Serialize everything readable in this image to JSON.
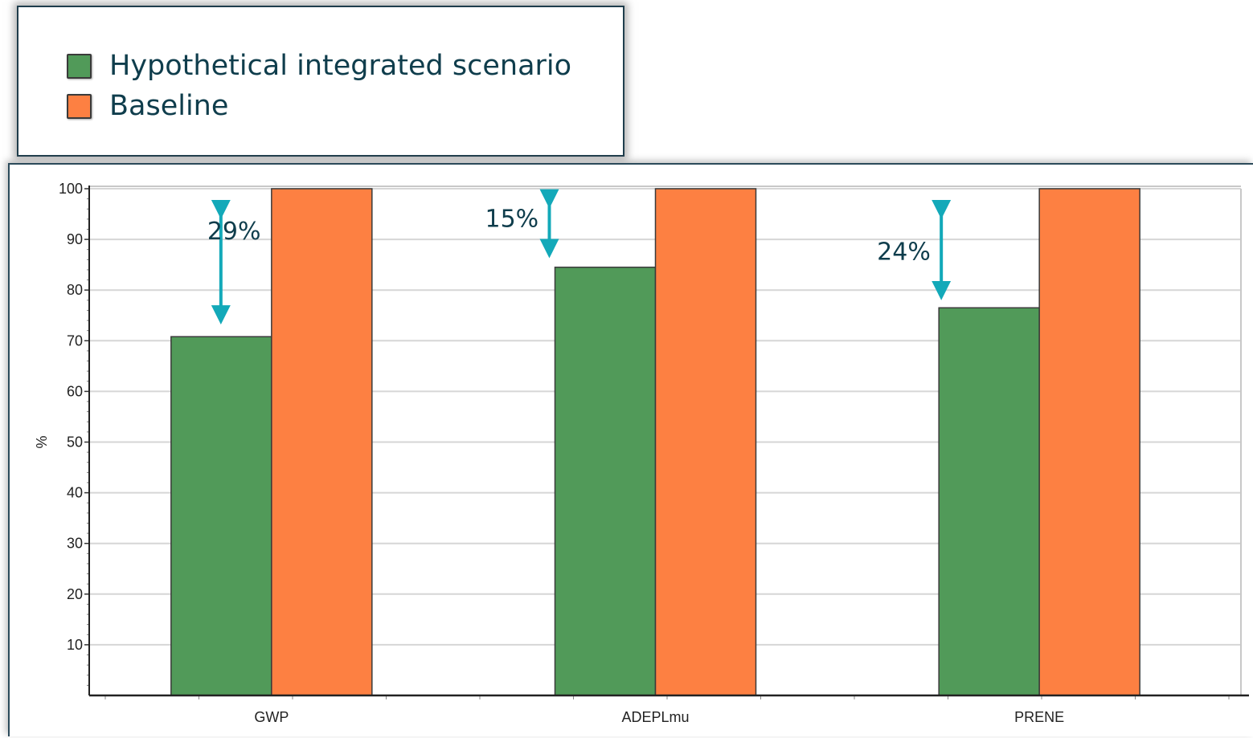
{
  "legend": {
    "items": [
      {
        "label": "Hypothetical integrated scenario",
        "color": "#519a59"
      },
      {
        "label": "Baseline",
        "color": "#fd8042"
      }
    ]
  },
  "chart_data": {
    "type": "bar",
    "categories": [
      "GWP",
      "ADEPLmu",
      "PRENE"
    ],
    "series": [
      {
        "name": "Hypothetical integrated scenario",
        "values": [
          70.8,
          84.5,
          76.5
        ],
        "color": "#519a59"
      },
      {
        "name": "Baseline",
        "values": [
          100,
          100,
          100
        ],
        "color": "#fd8042"
      }
    ],
    "ylabel": "%",
    "xlabel": "",
    "ylim": [
      0,
      100
    ],
    "yticks": [
      10,
      20,
      30,
      40,
      50,
      60,
      70,
      80,
      90,
      100
    ],
    "grid": true,
    "legend_position": "top-left",
    "annotations": [
      {
        "text": "29%",
        "category": "GWP"
      },
      {
        "text": "15%",
        "category": "ADEPLmu"
      },
      {
        "text": "24%",
        "category": "PRENE"
      }
    ],
    "annotation_color": "#13a9b9"
  }
}
